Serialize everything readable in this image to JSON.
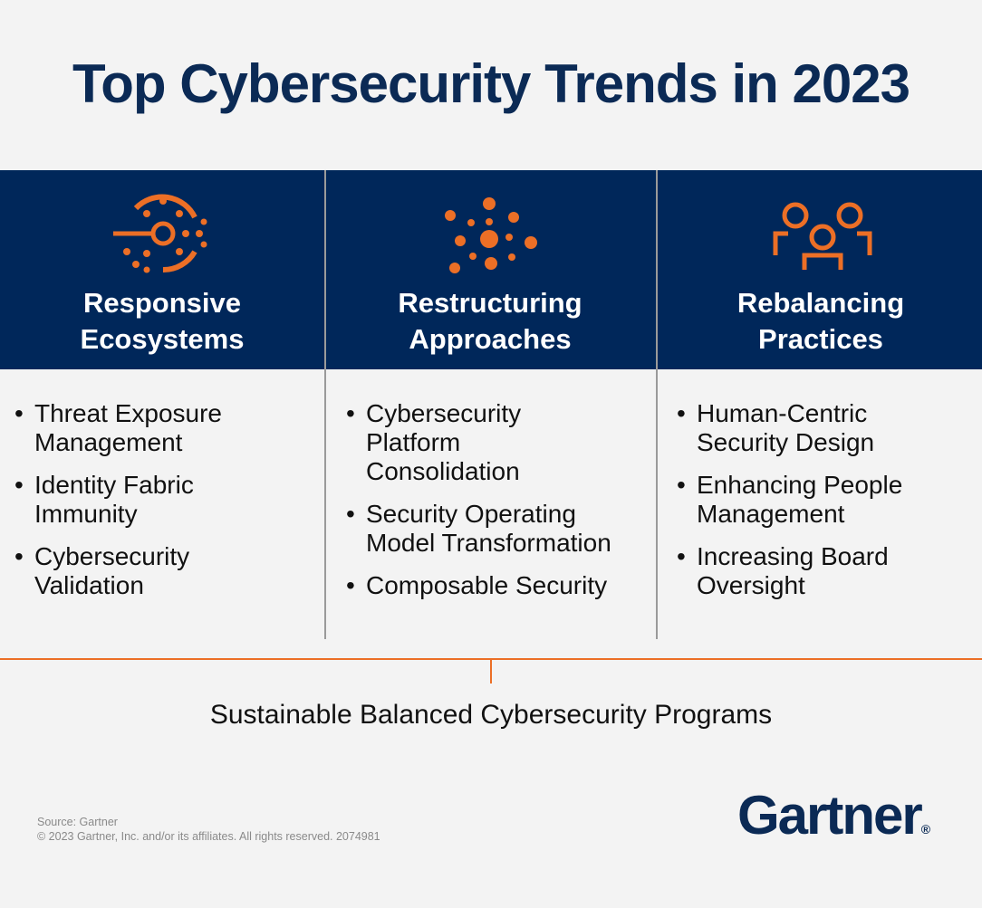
{
  "title": "Top Cybersecurity Trends in 2023",
  "columns": [
    {
      "heading": [
        "Responsive",
        "Ecosystems"
      ],
      "items": [
        [
          "Threat Exposure",
          "Management"
        ],
        [
          "Identity Fabric",
          "Immunity"
        ],
        [
          "Cybersecurity",
          "Validation"
        ]
      ]
    },
    {
      "heading": [
        "Restructuring",
        "Approaches"
      ],
      "items": [
        [
          "Cybersecurity",
          "Platform",
          "Consolidation"
        ],
        [
          "Security Operating",
          "Model Transformation"
        ],
        [
          "Composable Security"
        ]
      ]
    },
    {
      "heading": [
        "Rebalancing",
        "Practices"
      ],
      "items": [
        [
          "Human-Centric",
          "Security Design"
        ],
        [
          "Enhancing People",
          "Management"
        ],
        [
          "Increasing Board",
          "Oversight"
        ]
      ]
    }
  ],
  "foundation": "Sustainable Balanced Cybersecurity Programs",
  "footer": {
    "source": "Source: Gartner",
    "copyright": "© 2023 Gartner, Inc. and/or its affiliates. All rights reserved. 2074981"
  },
  "logo": {
    "text": "Gartner",
    "mark": "®"
  }
}
